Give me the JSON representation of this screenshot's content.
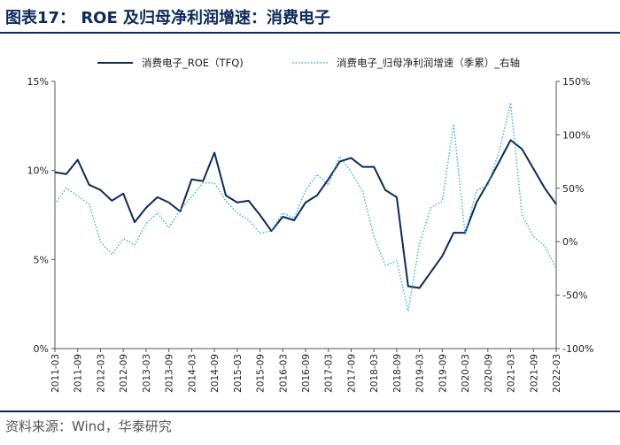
{
  "header": {
    "title": "图表17： ROE 及归母净利润增速：消费电子"
  },
  "footer": {
    "source": "资料来源：Wind，华泰研究"
  },
  "colors": {
    "roe": "#0b2a5b",
    "growth": "#36b3d4",
    "axis": "#555555",
    "text": "#222222"
  },
  "chart_data": {
    "type": "line",
    "title": "ROE 及归母净利润增速：消费电子",
    "x": [
      "2011-03",
      "2011-06",
      "2011-09",
      "2011-12",
      "2012-03",
      "2012-06",
      "2012-09",
      "2012-12",
      "2013-03",
      "2013-06",
      "2013-09",
      "2013-12",
      "2014-03",
      "2014-06",
      "2014-09",
      "2014-12",
      "2015-03",
      "2015-06",
      "2015-09",
      "2015-12",
      "2016-03",
      "2016-06",
      "2016-09",
      "2016-12",
      "2017-03",
      "2017-06",
      "2017-09",
      "2017-12",
      "2018-03",
      "2018-06",
      "2018-09",
      "2018-12",
      "2019-03",
      "2019-06",
      "2019-09",
      "2019-12",
      "2020-03",
      "2020-06",
      "2020-09",
      "2020-12",
      "2021-03",
      "2021-06",
      "2021-09",
      "2021-12",
      "2022-03"
    ],
    "xticks": [
      "2011-03",
      "2011-09",
      "2012-03",
      "2012-09",
      "2013-03",
      "2013-09",
      "2014-03",
      "2014-09",
      "2015-03",
      "2015-09",
      "2016-03",
      "2016-09",
      "2017-03",
      "2017-09",
      "2018-03",
      "2018-09",
      "2019-03",
      "2019-09",
      "2020-03",
      "2020-09",
      "2021-03",
      "2021-09",
      "2022-03"
    ],
    "y_left": {
      "ticks": [
        0,
        5,
        10,
        15
      ],
      "labels": [
        "0%",
        "5%",
        "10%",
        "15%"
      ],
      "lim": [
        0,
        15
      ]
    },
    "y_right": {
      "ticks": [
        -100,
        -50,
        0,
        50,
        100,
        150
      ],
      "labels": [
        "-100%",
        "-50%",
        "0%",
        "50%",
        "100%",
        "150%"
      ],
      "lim": [
        -100,
        150
      ]
    },
    "legend_position": "top",
    "series": [
      {
        "name": "消费电子_ROE（TFQ)",
        "axis": "left",
        "style": "solid",
        "values": [
          9.9,
          9.8,
          10.6,
          9.2,
          8.9,
          8.3,
          8.7,
          7.1,
          7.9,
          8.5,
          8.2,
          7.7,
          9.5,
          9.4,
          11.0,
          8.6,
          8.2,
          8.3,
          7.5,
          6.6,
          7.4,
          7.2,
          8.2,
          8.6,
          9.5,
          10.5,
          10.7,
          10.2,
          10.2,
          8.9,
          8.5,
          3.5,
          3.4,
          4.3,
          5.2,
          6.5,
          6.5,
          8.2,
          9.3,
          10.5,
          11.7,
          11.2,
          10.1,
          9.0,
          8.1
        ]
      },
      {
        "name": "消费电子_归母净利润增速（季累）_右轴",
        "axis": "right",
        "style": "dotted",
        "values": [
          35,
          50,
          43,
          35,
          0,
          -12,
          3,
          -3,
          17,
          27,
          13,
          30,
          42,
          55,
          55,
          38,
          27,
          20,
          8,
          10,
          27,
          22,
          48,
          63,
          53,
          80,
          65,
          47,
          5,
          -22,
          -18,
          -65,
          -2,
          32,
          38,
          110,
          7,
          48,
          53,
          85,
          130,
          25,
          5,
          -4,
          -25
        ]
      }
    ]
  }
}
